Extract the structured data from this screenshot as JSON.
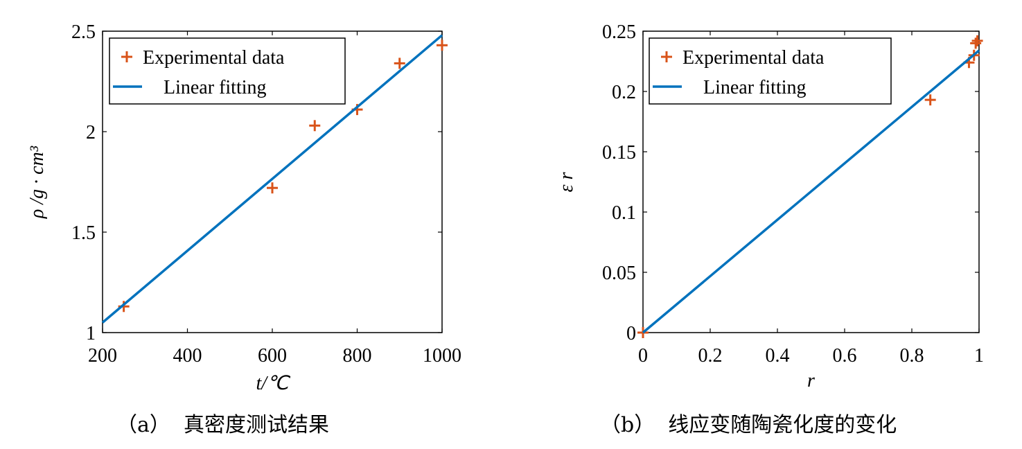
{
  "chart_data": [
    {
      "type": "scatter",
      "panel": "a",
      "caption": "（a）  真密度测试结果",
      "xlabel": "t/℃",
      "ylabel": "ρ /g · cm³",
      "xlim": [
        200,
        1000
      ],
      "ylim": [
        1,
        2.5
      ],
      "xticks": [
        200,
        400,
        600,
        800,
        1000
      ],
      "xtick_labels": [
        "200",
        "400",
        "600",
        "800",
        "1000"
      ],
      "yticks": [
        1,
        1.5,
        2,
        2.5
      ],
      "ytick_labels": [
        "1",
        "1.5",
        "2",
        "2.5"
      ],
      "grid": false,
      "legend_position": "top-left",
      "legend": [
        "Experimental data",
        "Linear fitting"
      ],
      "series": [
        {
          "name": "Experimental data",
          "kind": "marker",
          "color": "#D95319",
          "x": [
            250,
            600,
            700,
            800,
            900,
            1000
          ],
          "y": [
            1.13,
            1.72,
            2.03,
            2.11,
            2.34,
            2.43
          ]
        },
        {
          "name": "Linear fitting",
          "kind": "line",
          "color": "#0072BD",
          "x": [
            200,
            1000
          ],
          "y": [
            1.05,
            2.48
          ]
        }
      ]
    },
    {
      "type": "scatter",
      "panel": "b",
      "caption": "（b）  线应变随陶瓷化度的变化",
      "xlabel": "r",
      "ylabel": "ε r",
      "xlim": [
        0,
        1
      ],
      "ylim": [
        0,
        0.25
      ],
      "xticks": [
        0,
        0.2,
        0.4,
        0.6,
        0.8,
        1
      ],
      "xtick_labels": [
        "0",
        "0.2",
        "0.4",
        "0.6",
        "0.8",
        "1"
      ],
      "yticks": [
        0,
        0.05,
        0.1,
        0.15,
        0.2,
        0.25
      ],
      "ytick_labels": [
        "0",
        "0.05",
        "0.1",
        "0.15",
        "0.2",
        "0.25"
      ],
      "grid": false,
      "legend_position": "top-left",
      "legend": [
        "Experimental data",
        "Linear fitting"
      ],
      "series": [
        {
          "name": "Experimental data",
          "kind": "marker",
          "color": "#D95319",
          "x": [
            0,
            0.855,
            0.97,
            0.985,
            0.99,
            0.995
          ],
          "y": [
            0,
            0.193,
            0.224,
            0.23,
            0.24,
            0.242
          ]
        },
        {
          "name": "Linear fitting",
          "kind": "line",
          "color": "#0072BD",
          "x": [
            0,
            1
          ],
          "y": [
            0,
            0.234
          ]
        }
      ]
    }
  ]
}
